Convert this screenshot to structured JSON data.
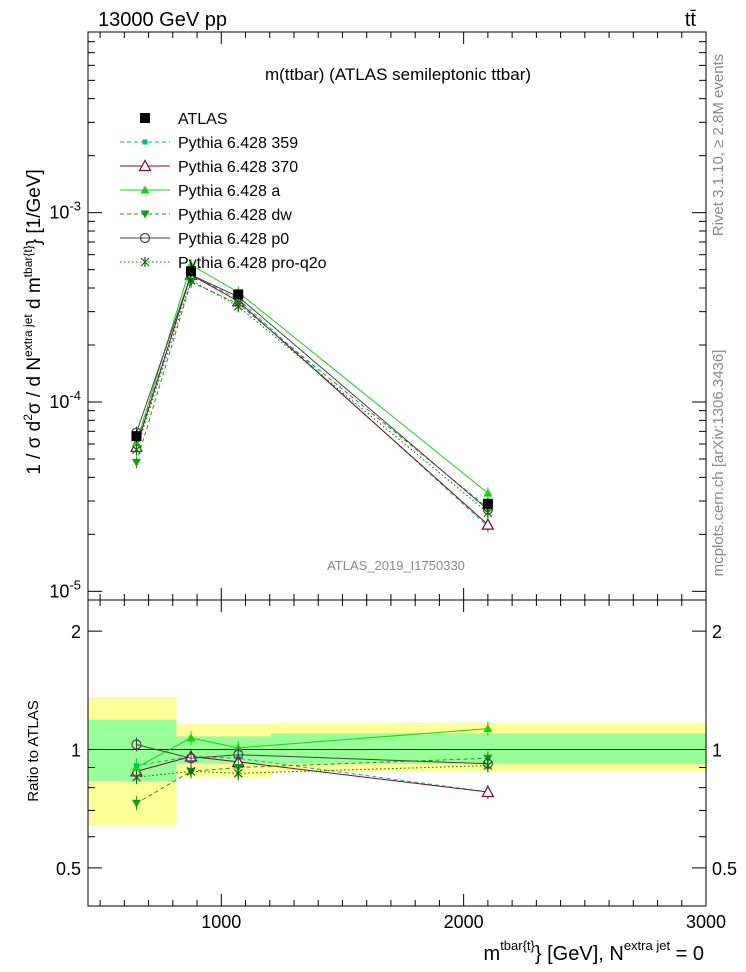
{
  "header": {
    "energy_label": "13000 GeV pp",
    "process_label": "tt̄"
  },
  "side_text": {
    "rivet": "Rivet 3.1.10, ≥ 2.8M events",
    "source": "mcplots.cern.ch [arXiv:1306.3436]"
  },
  "chart_data": {
    "type": "line",
    "title": "m(ttbar) (ATLAS semileptonic ttbar)",
    "analysis_tag": "ATLAS_2019_I1750330",
    "xlabel": "m^{tbar{t}} [GeV], N^{extra jet} = 0",
    "ylabel_main": "1 / σ d²σ / d N^{extra jet} d m^{tbar{t}} [1/GeV]",
    "ylabel_ratio": "Ratio to ATLAS",
    "xlim": [
      450,
      3000
    ],
    "ylim_main": [
      9e-06,
      0.009
    ],
    "ylim_ratio": [
      0.4,
      2.4
    ],
    "yscale_main": "log",
    "yscale_ratio": "log",
    "x_ticks": [
      "1000",
      "2000",
      "3000"
    ],
    "y_ticks_main": [
      "10^{-5}",
      "10^{-4}",
      "10^{-3}"
    ],
    "y_ticks_ratio": [
      "0.5",
      "1",
      "2"
    ],
    "legend_position": "top-left",
    "bin_edges": [
      450,
      815,
      935,
      1205,
      3000
    ],
    "x": [
      650,
      875,
      1070,
      2100
    ],
    "ratio_bands": {
      "inner": [
        [
          0.83,
          1.19
        ],
        [
          0.92,
          1.08
        ],
        [
          0.92,
          1.08
        ],
        [
          0.92,
          1.1
        ]
      ],
      "outer": [
        [
          0.64,
          1.36
        ],
        [
          0.85,
          1.16
        ],
        [
          0.85,
          1.16
        ],
        [
          0.88,
          1.17
        ]
      ]
    },
    "data": {
      "name": "ATLAS",
      "values": [
        6.6e-05,
        0.00049,
        0.00037,
        2.9e-05
      ],
      "errors": [
        5e-06,
        2.5e-05,
        1.5e-05,
        2e-06
      ]
    },
    "series": [
      {
        "name": "Pythia 6.428 359",
        "values": [
          6e-05,
          0.00047,
          0.00035,
          2.2e-05
        ],
        "ratio": [
          0.91,
          0.96,
          0.95,
          0.78
        ],
        "color": "#00b78e",
        "marker": "square-small",
        "dash": "dashed"
      },
      {
        "name": "Pythia 6.428 370",
        "values": [
          5.8e-05,
          0.00047,
          0.00034,
          2.25e-05
        ],
        "ratio": [
          0.88,
          0.96,
          0.93,
          0.78
        ],
        "color": "#7a0a28",
        "marker": "triangle-open",
        "dash": "solid"
      },
      {
        "name": "Pythia 6.428 a",
        "values": [
          6.1e-05,
          0.00053,
          0.00038,
          3.3e-05
        ],
        "ratio": [
          0.9,
          1.07,
          1.01,
          1.13
        ],
        "color": "#13d313",
        "marker": "triangle",
        "dash": "solid"
      },
      {
        "name": "Pythia 6.428 dw",
        "values": [
          4.8e-05,
          0.00043,
          0.00033,
          2.75e-05
        ],
        "ratio": [
          0.73,
          0.88,
          0.9,
          0.95
        ],
        "color": "#149c14",
        "marker": "triangle-down",
        "dash": "dashed"
      },
      {
        "name": "Pythia 6.428 p0",
        "values": [
          6.9e-05,
          0.00047,
          0.00036,
          2.7e-05
        ],
        "ratio": [
          1.03,
          0.95,
          0.97,
          0.92
        ],
        "color": "#444444",
        "marker": "circle-open",
        "dash": "solid"
      },
      {
        "name": "Pythia 6.428 pro-q2o",
        "values": [
          5.6e-05,
          0.00044,
          0.00032,
          2.6e-05
        ],
        "ratio": [
          0.85,
          0.88,
          0.87,
          0.91
        ],
        "color": "#0a6a0a",
        "marker": "star",
        "dash": "dotted"
      }
    ]
  }
}
